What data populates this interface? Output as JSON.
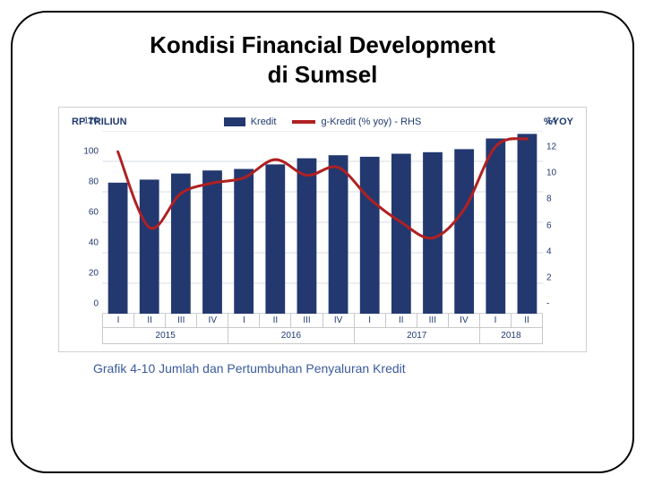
{
  "title_line1": "Kondisi Financial Development",
  "title_line2": "di Sumsel",
  "caption": "Grafik 4-10 Jumlah dan Pertumbuhan Penyaluran Kredit",
  "chart": {
    "type": "bar+line",
    "background_color": "#ffffff",
    "border_color": "#d0d0d0",
    "axis_font_color": "#1f3a6e",
    "axis_fontsize": 10,
    "axis_title_fontsize": 11,
    "y_left": {
      "title": "RP TRILIUN",
      "min": 0,
      "max": 120,
      "step": 20,
      "ticks": [
        0,
        20,
        40,
        60,
        80,
        100,
        120
      ]
    },
    "y_right": {
      "title": "%YOY",
      "min": 0,
      "max": 14,
      "step": 2,
      "ticks": [
        "-",
        "2",
        "4",
        "6",
        "8",
        "10",
        "12",
        "14"
      ]
    },
    "grid_color": "#d7dce6",
    "categories": [
      "I",
      "II",
      "III",
      "IV",
      "I",
      "II",
      "III",
      "IV",
      "I",
      "II",
      "III",
      "IV",
      "I",
      "II"
    ],
    "year_groups": [
      {
        "label": "2015",
        "span": 4
      },
      {
        "label": "2016",
        "span": 4
      },
      {
        "label": "2017",
        "span": 4
      },
      {
        "label": "2018",
        "span": 2
      }
    ],
    "bars": {
      "label": "Kredit",
      "color": "#22386f",
      "width": 0.62,
      "values": [
        86,
        88,
        92,
        94,
        95,
        98,
        102,
        104,
        103,
        105,
        106,
        108,
        115,
        118
      ]
    },
    "line": {
      "label": "g-Kredit (% yoy) - RHS",
      "color": "#b02022",
      "width": 3,
      "values": [
        12.4,
        6.6,
        9.2,
        10.0,
        10.4,
        11.8,
        10.6,
        11.2,
        8.8,
        7.0,
        5.8,
        8.0,
        12.8,
        13.4
      ]
    }
  }
}
